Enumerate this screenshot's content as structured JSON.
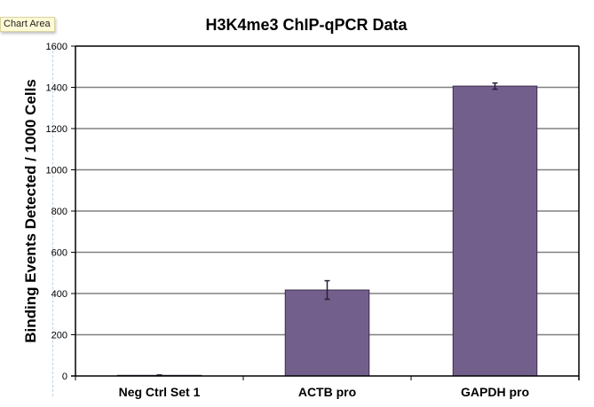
{
  "tooltip": {
    "label": "Chart Area"
  },
  "chart_data": {
    "type": "bar",
    "title": "H3K4me3 ChIP-qPCR Data",
    "xlabel": "",
    "ylabel": "Binding Events Detected / 1000 Cells",
    "categories": [
      "Neg Ctrl Set 1",
      "ACTB pro",
      "GAPDH pro"
    ],
    "values": [
      3,
      417,
      1406
    ],
    "error": [
      2,
      45,
      15
    ],
    "ylim": [
      0,
      1600
    ],
    "yticks": [
      0,
      200,
      400,
      600,
      800,
      1000,
      1200,
      1400,
      1600
    ],
    "grid": true,
    "legend": "none",
    "colors": {
      "bar": "#735f8c",
      "bar_edge": "#3a2d4a",
      "grid": "#808080",
      "axis": "#000000"
    }
  }
}
